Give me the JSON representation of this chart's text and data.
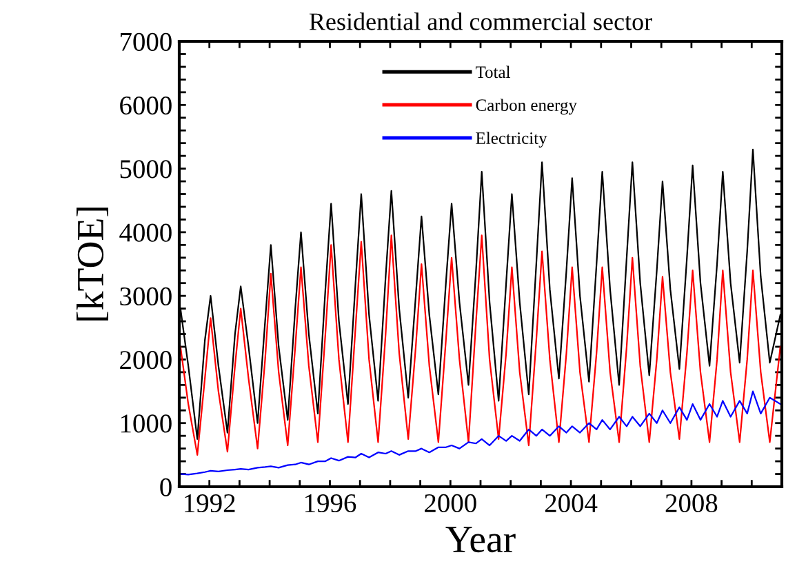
{
  "chart_data": {
    "type": "line",
    "title": "Residential and commercial sector",
    "xlabel": "Year",
    "ylabel": "[kTOE]",
    "x": [
      1991.04,
      1991.3,
      1991.6,
      1991.85,
      1992.04,
      1992.3,
      1992.6,
      1992.85,
      1993.04,
      1993.3,
      1993.6,
      1993.85,
      1994.04,
      1994.3,
      1994.6,
      1994.85,
      1995.04,
      1995.3,
      1995.6,
      1995.85,
      1996.04,
      1996.3,
      1996.6,
      1996.85,
      1997.04,
      1997.3,
      1997.6,
      1997.85,
      1998.04,
      1998.3,
      1998.6,
      1998.85,
      1999.04,
      1999.3,
      1999.6,
      1999.85,
      2000.04,
      2000.3,
      2000.6,
      2000.85,
      2001.04,
      2001.3,
      2001.6,
      2001.85,
      2002.04,
      2002.3,
      2002.6,
      2002.85,
      2003.04,
      2003.3,
      2003.6,
      2003.85,
      2004.04,
      2004.3,
      2004.6,
      2004.85,
      2005.04,
      2005.3,
      2005.6,
      2005.85,
      2006.04,
      2006.3,
      2006.6,
      2006.85,
      2007.04,
      2007.3,
      2007.6,
      2007.85,
      2008.04,
      2008.3,
      2008.6,
      2008.85,
      2009.04,
      2009.3,
      2009.6,
      2009.85,
      2010.04,
      2010.3,
      2010.6,
      2010.95
    ],
    "series": [
      {
        "name": "Total",
        "color": "#000000",
        "values": [
          2800,
          1900,
          750,
          2300,
          3000,
          1900,
          850,
          2400,
          3150,
          2200,
          1000,
          2600,
          3800,
          2200,
          1050,
          2800,
          4000,
          2400,
          1150,
          3100,
          4450,
          2600,
          1300,
          3200,
          4600,
          2700,
          1350,
          3300,
          4650,
          2800,
          1400,
          3000,
          4250,
          2700,
          1450,
          3200,
          4450,
          2900,
          1600,
          3400,
          4950,
          2900,
          1350,
          3200,
          4600,
          2900,
          1450,
          3500,
          5100,
          3100,
          1700,
          3400,
          4850,
          3000,
          1650,
          3500,
          4950,
          3100,
          1600,
          3600,
          5100,
          3200,
          1750,
          3400,
          4800,
          3100,
          1850,
          3600,
          5050,
          3200,
          1900,
          3500,
          4950,
          3200,
          1950,
          3700,
          5300,
          3300,
          1950,
          2700
        ]
      },
      {
        "name": "Carbon energy",
        "color": "#ff0000",
        "values": [
          2200,
          1300,
          500,
          1700,
          2650,
          1500,
          550,
          1900,
          2800,
          1700,
          600,
          2000,
          3350,
          1800,
          650,
          2200,
          3450,
          1900,
          700,
          2400,
          3800,
          2000,
          700,
          2500,
          3850,
          2000,
          700,
          2400,
          3950,
          2100,
          750,
          2200,
          3500,
          1900,
          700,
          2300,
          3600,
          2000,
          700,
          2600,
          3950,
          2000,
          750,
          2100,
          3450,
          1800,
          650,
          2300,
          3700,
          2000,
          700,
          2100,
          3450,
          1800,
          700,
          2100,
          3450,
          1800,
          700,
          2200,
          3600,
          1900,
          700,
          2000,
          3300,
          1800,
          750,
          2100,
          3400,
          1800,
          700,
          2000,
          3400,
          1800,
          700,
          2000,
          3400,
          1800,
          700,
          2200
        ]
      },
      {
        "name": "Electricity",
        "color": "#0000ff",
        "values": [
          200,
          190,
          210,
          230,
          250,
          240,
          260,
          270,
          280,
          270,
          300,
          310,
          320,
          300,
          340,
          350,
          380,
          350,
          400,
          400,
          450,
          410,
          470,
          460,
          520,
          460,
          540,
          520,
          560,
          500,
          560,
          560,
          600,
          540,
          620,
          620,
          650,
          600,
          700,
          680,
          750,
          650,
          800,
          720,
          800,
          720,
          900,
          800,
          900,
          800,
          950,
          850,
          950,
          850,
          1000,
          900,
          1050,
          900,
          1100,
          950,
          1100,
          950,
          1150,
          1000,
          1200,
          1000,
          1250,
          1050,
          1300,
          1050,
          1300,
          1100,
          1350,
          1100,
          1350,
          1150,
          1500,
          1150,
          1400,
          1300
        ]
      }
    ],
    "xlim": [
      1991,
      2011
    ],
    "xticks": [
      {
        "value": 1991,
        "label": null
      },
      1992,
      {
        "value": 1993,
        "label": null
      },
      {
        "value": 1994,
        "label": null
      },
      {
        "value": 1995,
        "label": null
      },
      1996,
      {
        "value": 1997,
        "label": null
      },
      {
        "value": 1998,
        "label": null
      },
      {
        "value": 1999,
        "label": null
      },
      2000,
      {
        "value": 2001,
        "label": null
      },
      {
        "value": 2002,
        "label": null
      },
      {
        "value": 2003,
        "label": null
      },
      2004,
      {
        "value": 2005,
        "label": null
      },
      {
        "value": 2006,
        "label": null
      },
      {
        "value": 2007,
        "label": null
      },
      2008,
      {
        "value": 2009,
        "label": null
      },
      {
        "value": 2010,
        "label": null
      }
    ],
    "ylim": [
      0,
      7000
    ],
    "yticks": [
      0,
      {
        "value": 200,
        "label": null
      },
      {
        "value": 400,
        "label": null
      },
      {
        "value": 600,
        "label": null
      },
      {
        "value": 800,
        "label": null
      },
      1000,
      {
        "value": 1200,
        "label": null
      },
      {
        "value": 1400,
        "label": null
      },
      {
        "value": 1600,
        "label": null
      },
      {
        "value": 1800,
        "label": null
      },
      2000,
      {
        "value": 2200,
        "label": null
      },
      {
        "value": 2400,
        "label": null
      },
      {
        "value": 2600,
        "label": null
      },
      {
        "value": 2800,
        "label": null
      },
      3000,
      {
        "value": 3200,
        "label": null
      },
      {
        "value": 3400,
        "label": null
      },
      {
        "value": 3600,
        "label": null
      },
      {
        "value": 3800,
        "label": null
      },
      4000,
      {
        "value": 4200,
        "label": null
      },
      {
        "value": 4400,
        "label": null
      },
      {
        "value": 4600,
        "label": null
      },
      {
        "value": 4800,
        "label": null
      },
      5000,
      {
        "value": 5200,
        "label": null
      },
      {
        "value": 5400,
        "label": null
      },
      {
        "value": 5600,
        "label": null
      },
      {
        "value": 5800,
        "label": null
      },
      6000,
      {
        "value": 6200,
        "label": null
      },
      {
        "value": 6400,
        "label": null
      },
      {
        "value": 6600,
        "label": null
      },
      {
        "value": 6800,
        "label": null
      },
      7000
    ],
    "grid": false,
    "legend": "top",
    "marker": "none",
    "line_style": "solid"
  }
}
